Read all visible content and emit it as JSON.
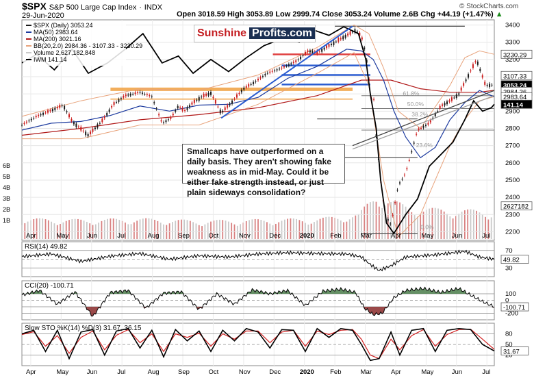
{
  "header": {
    "symbol": "$SPX",
    "name": "S&P 500 Large Cap Index",
    "exchange": "INDX",
    "date": "29-Jun-2020",
    "quote": "Open 3018.59  High 3053.89  Low 2999.74  Close 3053.24  Volume 2.6B  Chg +44.19 (+1.47%)",
    "quote_arrow": "▲",
    "source": "© StockCharts.com"
  },
  "logo": {
    "part1": "Sunshine",
    "part2": "Profits.com"
  },
  "annotation": "Smallcaps have outperformed on a daily basis. They aren't showing fake weakness as in mid-May. Could it be either fake strength instead, or just plain sideways consolidation?",
  "colors": {
    "up": "#1a1a1a",
    "down": "#cc1f1f",
    "ma50": "#1c3a9e",
    "ma200": "#b01818",
    "bb": "#e8a27a",
    "iwm": "#000000",
    "volume": "#c9c9c9",
    "volume_down": "#d88080",
    "fib": "#777777",
    "orange": "#f0a040",
    "red_line": "#e04040",
    "blue_line": "#2a5cd0",
    "osc_green": "#4a7c4a",
    "osc_red": "#8a2a2a",
    "sto_k": "#000000",
    "sto_d": "#d21f1f"
  },
  "chart_data": [
    {
      "type": "line",
      "title": "$SPX (Daily) 3053.24",
      "legend": [
        "$SPX (Daily) 3053.24",
        "MA(50) 2983.64",
        "MA(200) 3021.16",
        "BB(20,2.0) 2984.36 - 3107.33 - 3230.29",
        "Volume 2,627,182,848",
        "IWM 141.14"
      ],
      "x_months": [
        "Apr",
        "May",
        "Jun",
        "Jul",
        "Aug",
        "Sep",
        "Oct",
        "Nov",
        "Dec",
        "2020",
        "Feb",
        "Mar",
        "Apr",
        "May",
        "Jun",
        "Jul"
      ],
      "ylim": [
        2150,
        3430
      ],
      "y_ticks": [
        3400,
        3300,
        3200,
        3100,
        3000,
        2900,
        2800,
        2700,
        2600,
        2500,
        2400,
        2300,
        2200
      ],
      "value_labels": [
        "3230.29",
        "3107.33",
        "3053.24",
        "2984.36",
        "2983.64",
        "141.14",
        "2627182"
      ],
      "volume_ticks": [
        "6B",
        "5B",
        "4B",
        "3B",
        "2B",
        "1B"
      ],
      "fib_labels": [
        "61.8%",
        "50.0%",
        "38.2%",
        "23.6%",
        "0.0%"
      ],
      "series": [
        {
          "name": "$SPX",
          "x": [
            0,
            10,
            20,
            28,
            34,
            45,
            55,
            62,
            70,
            80,
            88,
            95,
            101,
            106,
            110,
            116,
            122,
            128,
            135,
            142,
            150,
            158,
            166,
            176,
            186,
            194,
            200,
            210,
            218,
            226,
            230,
            233,
            235,
            237,
            238,
            240,
            243,
            246,
            250,
            255,
            260,
            268,
            276,
            284,
            290,
            296,
            302,
            308,
            314,
            320
          ],
          "values": [
            2820,
            2870,
            2905,
            2935,
            2840,
            2760,
            2850,
            2940,
            2990,
            3010,
            2985,
            2830,
            2860,
            2930,
            2900,
            2950,
            2985,
            3005,
            2890,
            2950,
            3030,
            3070,
            3120,
            3150,
            3190,
            3250,
            3240,
            3290,
            3330,
            3370,
            3335,
            3230,
            3100,
            2950,
            3020,
            2760,
            2500,
            2300,
            2240,
            2470,
            2540,
            2790,
            2830,
            2930,
            2960,
            3000,
            3100,
            3200,
            3050,
            3053
          ]
        },
        {
          "name": "MA(50)",
          "x": [
            0,
            20,
            40,
            60,
            80,
            100,
            120,
            140,
            160,
            180,
            200,
            220,
            230,
            238,
            245,
            252,
            260,
            270,
            280,
            290,
            300,
            310,
            320
          ],
          "values": [
            2790,
            2830,
            2840,
            2875,
            2930,
            2900,
            2935,
            2940,
            2980,
            3090,
            3160,
            3260,
            3250,
            3200,
            3080,
            2900,
            2750,
            2630,
            2690,
            2850,
            2950,
            3020,
            2983
          ]
        },
        {
          "name": "MA(200)",
          "x": [
            0,
            40,
            80,
            120,
            160,
            200,
            230,
            250,
            270,
            290,
            310,
            320
          ],
          "values": [
            2760,
            2800,
            2850,
            2880,
            2920,
            2990,
            3080,
            3080,
            3030,
            3010,
            3010,
            3021
          ]
        },
        {
          "name": "BB upper",
          "x": [
            0,
            40,
            80,
            120,
            160,
            200,
            225,
            235,
            245,
            255,
            270,
            290,
            300,
            310,
            320
          ],
          "values": [
            2870,
            2960,
            3030,
            3020,
            3110,
            3270,
            3400,
            3350,
            3150,
            2900,
            2800,
            3050,
            3210,
            3250,
            3230
          ]
        },
        {
          "name": "BB lower",
          "x": [
            0,
            40,
            80,
            120,
            160,
            200,
            225,
            235,
            245,
            255,
            270,
            290,
            300,
            310,
            320
          ],
          "values": [
            2740,
            2740,
            2820,
            2820,
            2940,
            3120,
            3240,
            3050,
            2500,
            2170,
            2300,
            2700,
            2850,
            2960,
            2984
          ]
        },
        {
          "name": "IWM 141.14",
          "x": [
            0,
            10,
            22,
            34,
            45,
            58,
            70,
            82,
            95,
            106,
            116,
            128,
            140,
            152,
            164,
            176,
            188,
            198,
            208,
            218,
            228,
            233,
            236,
            240,
            243,
            247,
            252,
            260,
            268,
            276,
            284,
            292,
            300,
            306,
            312,
            318,
            320
          ],
          "values": [
            3180,
            3230,
            3140,
            3260,
            3120,
            3180,
            3260,
            3350,
            3180,
            3220,
            3120,
            3200,
            3130,
            3210,
            3280,
            3320,
            3300,
            3370,
            3340,
            3390,
            3350,
            3200,
            3000,
            2800,
            2500,
            2250,
            2190,
            2300,
            2390,
            2580,
            2650,
            2720,
            2850,
            2960,
            2900,
            2920,
            2940
          ]
        },
        {
          "name": "Volume",
          "x": [
            0,
            40,
            80,
            120,
            160,
            200,
            228,
            240,
            250,
            262,
            280,
            300,
            320
          ],
          "values": [
            1.9,
            1.8,
            1.9,
            1.7,
            1.8,
            1.9,
            2.3,
            4.2,
            3.6,
            3.0,
            2.8,
            2.7,
            2.6
          ]
        }
      ],
      "markers": {
        "orange_bands": [
          3027,
          2970
        ],
        "red_line": 3230,
        "blue_bands": [
          3165,
          3110,
          3055
        ],
        "gray_lines": [
          3393,
          2855,
          2630,
          2190
        ],
        "fib_lines": [
          2990,
          2915,
          2790
        ]
      }
    },
    {
      "type": "line",
      "title": "RSI(14) 49.82",
      "ylim": [
        10,
        90
      ],
      "y_ticks": [
        70,
        50,
        30
      ],
      "value_labels": [
        "49.82"
      ],
      "series": [
        {
          "name": "RSI(14)",
          "x": [
            0,
            20,
            40,
            60,
            80,
            100,
            120,
            140,
            160,
            180,
            200,
            220,
            230,
            236,
            242,
            250,
            260,
            280,
            300,
            310,
            320
          ],
          "values": [
            56,
            62,
            45,
            57,
            63,
            50,
            58,
            55,
            62,
            65,
            63,
            62,
            55,
            38,
            24,
            35,
            55,
            60,
            68,
            55,
            49.82
          ]
        }
      ]
    },
    {
      "type": "area",
      "title": "CCI(20) -100.71",
      "ylim": [
        -300,
        300
      ],
      "y_ticks": [
        100,
        0,
        -100,
        -200
      ],
      "value_labels": [
        "-100.71"
      ],
      "series": [
        {
          "name": "CCI(20)",
          "x": [
            0,
            12,
            24,
            36,
            48,
            60,
            72,
            84,
            96,
            108,
            120,
            132,
            144,
            156,
            168,
            180,
            192,
            204,
            216,
            226,
            232,
            238,
            244,
            252,
            260,
            272,
            284,
            296,
            304,
            312,
            320
          ],
          "values": [
            80,
            150,
            -60,
            130,
            -250,
            120,
            150,
            -120,
            110,
            130,
            -140,
            100,
            -60,
            160,
            100,
            150,
            -80,
            140,
            170,
            120,
            -120,
            -220,
            -200,
            40,
            150,
            180,
            120,
            180,
            80,
            -20,
            -100.71
          ]
        }
      ]
    },
    {
      "type": "line",
      "title": "Slow STO %K(14) %D(3) 31.67, 36.15",
      "ylim": [
        -10,
        110
      ],
      "y_ticks": [
        80,
        50,
        20
      ],
      "value_labels": [
        "31.67"
      ],
      "series": [
        {
          "name": "%K(14)",
          "x": [
            0,
            8,
            16,
            24,
            32,
            40,
            48,
            56,
            64,
            72,
            80,
            88,
            96,
            104,
            112,
            120,
            128,
            136,
            144,
            152,
            160,
            168,
            176,
            184,
            192,
            200,
            208,
            216,
            224,
            230,
            236,
            242,
            250,
            256,
            264,
            272,
            280,
            288,
            296,
            304,
            312,
            320
          ],
          "values": [
            80,
            90,
            30,
            90,
            10,
            85,
            92,
            20,
            88,
            95,
            40,
            90,
            15,
            92,
            60,
            88,
            30,
            90,
            60,
            95,
            85,
            40,
            92,
            90,
            30,
            95,
            70,
            95,
            90,
            50,
            5,
            10,
            85,
            20,
            90,
            95,
            30,
            90,
            95,
            92,
            50,
            31.67
          ]
        },
        {
          "name": "%D(3)",
          "x": [
            0,
            8,
            16,
            24,
            32,
            40,
            48,
            56,
            64,
            72,
            80,
            88,
            96,
            104,
            112,
            120,
            128,
            136,
            144,
            152,
            160,
            168,
            176,
            184,
            192,
            200,
            208,
            216,
            224,
            230,
            236,
            242,
            250,
            256,
            264,
            272,
            280,
            288,
            296,
            304,
            312,
            320
          ],
          "values": [
            78,
            86,
            45,
            75,
            25,
            70,
            88,
            35,
            76,
            92,
            55,
            80,
            30,
            80,
            70,
            82,
            45,
            80,
            65,
            88,
            88,
            55,
            85,
            90,
            45,
            88,
            78,
            90,
            92,
            65,
            20,
            10,
            65,
            35,
            75,
            92,
            45,
            78,
            92,
            93,
            65,
            36.15
          ]
        }
      ]
    }
  ]
}
